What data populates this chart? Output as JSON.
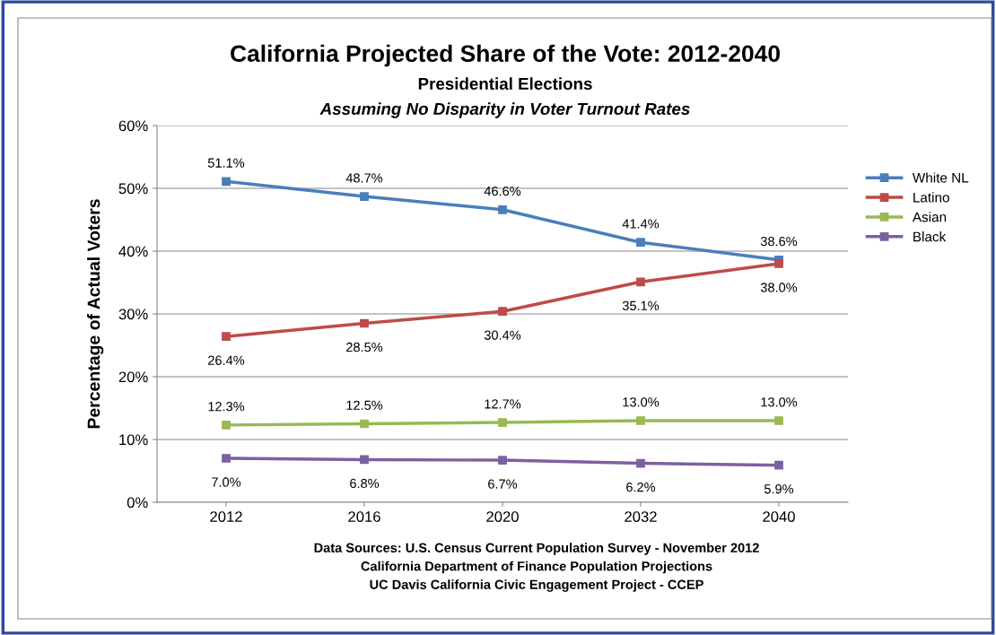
{
  "chart_data": {
    "type": "line",
    "title": "California Projected Share of the Vote: 2012-2040",
    "subtitle": "Presidential Elections\nAssuming No Disparity in Voter Turnout Rates",
    "ylabel": "Percentage of Actual Voters",
    "categories": [
      "2012",
      "2016",
      "2020",
      "2032",
      "2040"
    ],
    "series": [
      {
        "name": "White NL",
        "color": "#4a7ebb",
        "values": [
          51.1,
          48.7,
          46.6,
          41.4,
          38.6
        ],
        "value_labels": [
          "51.1%",
          "48.7%",
          "46.6%",
          "41.4%",
          "38.6%"
        ]
      },
      {
        "name": "Latino",
        "color": "#be4b48",
        "values": [
          26.4,
          28.5,
          30.4,
          35.1,
          38.0
        ],
        "value_labels": [
          "26.4%",
          "28.5%",
          "30.4%",
          "35.1%",
          "38.0%"
        ]
      },
      {
        "name": "Asian",
        "color": "#98b954",
        "values": [
          12.3,
          12.5,
          12.7,
          13.0,
          13.0
        ],
        "value_labels": [
          "12.3%",
          "12.5%",
          "12.7%",
          "13.0%",
          "13.0%"
        ]
      },
      {
        "name": "Black",
        "color": "#7d60a0",
        "values": [
          7.0,
          6.8,
          6.7,
          6.2,
          5.9
        ],
        "value_labels": [
          "7.0%",
          "6.8%",
          "6.7%",
          "6.2%",
          "5.9%"
        ]
      }
    ],
    "ylim": [
      0,
      60
    ],
    "yticks": [
      {
        "value": 0,
        "label": "0%"
      },
      {
        "value": 10,
        "label": "10%"
      },
      {
        "value": 20,
        "label": "20%"
      },
      {
        "value": 30,
        "label": "30%"
      },
      {
        "value": 40,
        "label": "40%"
      },
      {
        "value": 50,
        "label": "50%"
      },
      {
        "value": 60,
        "label": "60%"
      }
    ],
    "grid": "y",
    "legend": "right",
    "marker": "square",
    "line_style": "solid",
    "annotations": [
      "Data Sources: U.S. Census Current Population Survey - November 2012",
      "California Department of Finance Population Projections",
      "UC Davis California Civic Engagement Project - CCEP"
    ]
  }
}
